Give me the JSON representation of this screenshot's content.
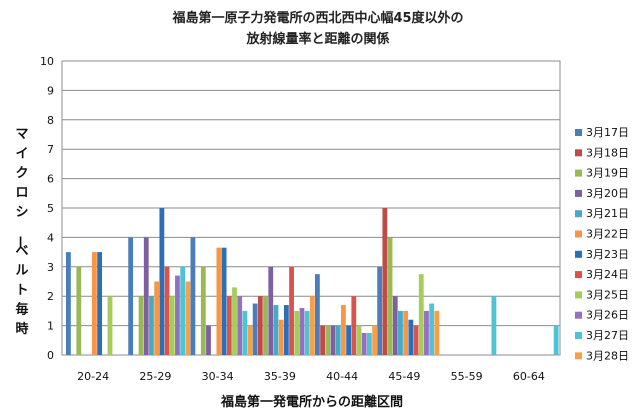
{
  "chart_data": {
    "type": "bar",
    "title": [
      "福島第一原子力発電所の西北西中心幅45度以外の",
      "放射線量率と距離の関係"
    ],
    "xlabel": "福島第一発電所からの距離区間",
    "ylabel": "マイクロシーベルト毎時",
    "ylim": [
      0,
      10
    ],
    "yticks": [
      "0",
      "1",
      "2",
      "3",
      "4",
      "5",
      "6",
      "7",
      "8",
      "9",
      "10"
    ],
    "grid": true,
    "legend_position": "right",
    "categories": [
      "20-24",
      "25-29",
      "30-34",
      "35-39",
      "40-44",
      "45-49",
      "55-59",
      "60-64"
    ],
    "series": [
      {
        "name": "3月17日",
        "color": "#4a7ebb",
        "values": [
          3.5,
          4.0,
          4.0,
          1.75,
          2.75,
          3.0,
          null,
          null
        ]
      },
      {
        "name": "3月18日",
        "color": "#be4b48",
        "values": [
          null,
          null,
          null,
          2.0,
          1.0,
          5.0,
          null,
          null
        ]
      },
      {
        "name": "3月19日",
        "color": "#98b954",
        "values": [
          3.0,
          2.0,
          3.0,
          2.0,
          1.0,
          4.0,
          null,
          null
        ]
      },
      {
        "name": "3月20日",
        "color": "#7d60a0",
        "values": [
          null,
          4.0,
          1.0,
          3.0,
          1.0,
          2.0,
          null,
          null
        ]
      },
      {
        "name": "3月21日",
        "color": "#46aac5",
        "values": [
          null,
          2.0,
          null,
          1.7,
          1.0,
          1.5,
          null,
          null
        ]
      },
      {
        "name": "3月22日",
        "color": "#f79646",
        "values": [
          3.5,
          2.5,
          3.65,
          1.2,
          1.7,
          1.5,
          null,
          null
        ]
      },
      {
        "name": "3月23日",
        "color": "#2c6fb7",
        "values": [
          3.5,
          5.0,
          3.65,
          1.7,
          1.0,
          1.2,
          null,
          null
        ]
      },
      {
        "name": "3月24日",
        "color": "#d9534f",
        "values": [
          null,
          3.0,
          2.0,
          3.0,
          2.0,
          1.0,
          null,
          null
        ]
      },
      {
        "name": "3月25日",
        "color": "#a6cd5a",
        "values": [
          2.0,
          2.0,
          2.3,
          1.5,
          1.0,
          2.75,
          null,
          null
        ]
      },
      {
        "name": "3月26日",
        "color": "#9470c0",
        "values": [
          null,
          2.7,
          2.0,
          1.6,
          0.75,
          1.5,
          null,
          null
        ]
      },
      {
        "name": "3月27日",
        "color": "#4fc3d6",
        "values": [
          null,
          3.0,
          1.5,
          1.5,
          0.75,
          1.75,
          2.0,
          1.0
        ]
      },
      {
        "name": "3月28日",
        "color": "#f7a04a",
        "values": [
          null,
          2.5,
          1.0,
          2.0,
          1.0,
          1.5,
          null,
          null
        ]
      }
    ]
  }
}
